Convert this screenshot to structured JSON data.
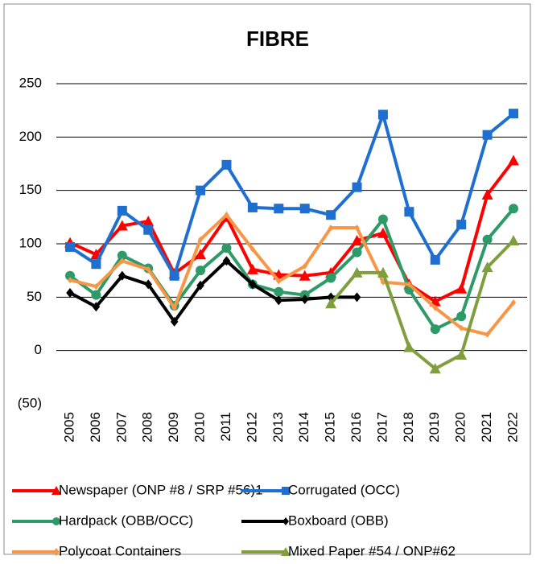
{
  "chart_data": {
    "type": "line",
    "title": "FIBRE",
    "categories": [
      "2005",
      "2006",
      "2007",
      "2008",
      "2009",
      "2010",
      "2011",
      "2012",
      "2013",
      "2014",
      "2015",
      "2016",
      "2017",
      "2018",
      "2019",
      "2020",
      "2021",
      "2022"
    ],
    "ylim": [
      -50,
      250
    ],
    "yticks": [
      {
        "value": -50,
        "label": "(50)"
      },
      0,
      50,
      100,
      150,
      200,
      250
    ],
    "grid": true,
    "legend": "bottom",
    "series": [
      {
        "name": "Newspaper (ONP #8 / SRP #56)1",
        "color": "#ff0000",
        "marker": "triangle",
        "values": [
          101,
          90,
          117,
          121,
          72,
          90,
          125,
          76,
          71,
          70,
          73,
          103,
          110,
          62,
          46,
          58,
          146,
          178
        ]
      },
      {
        "name": "Corrugated (OCC)",
        "color": "#1f6fd0",
        "marker": "square",
        "values": [
          97,
          81,
          131,
          113,
          70,
          150,
          174,
          134,
          133,
          133,
          127,
          153,
          221,
          130,
          85,
          118,
          202,
          222
        ]
      },
      {
        "name": "Hardpack (OBB/OCC)",
        "color": "#2e9a68",
        "marker": "circle",
        "values": [
          70,
          52,
          89,
          77,
          42,
          75,
          96,
          62,
          55,
          52,
          68,
          92,
          123,
          57,
          20,
          32,
          104,
          133
        ]
      },
      {
        "name": "Boxboard (OBB)",
        "color": "#000000",
        "marker": "diamond",
        "values": [
          54,
          41,
          70,
          62,
          27,
          61,
          84,
          62,
          47,
          48,
          50,
          50,
          null,
          null,
          null,
          null,
          null,
          null
        ]
      },
      {
        "name": "Polycoat Containers",
        "color": "#f79646",
        "marker": "diamond",
        "values": [
          66,
          60,
          84,
          76,
          40,
          104,
          127,
          95,
          65,
          79,
          115,
          115,
          64,
          62,
          40,
          21,
          15,
          45
        ]
      },
      {
        "name": "Mixed Paper #54 / ONP#62",
        "color": "#7f9f3f",
        "marker": "triangle",
        "values": [
          null,
          null,
          null,
          null,
          null,
          null,
          null,
          null,
          null,
          null,
          44,
          73,
          73,
          3,
          -17,
          -4,
          78,
          103
        ]
      }
    ]
  }
}
